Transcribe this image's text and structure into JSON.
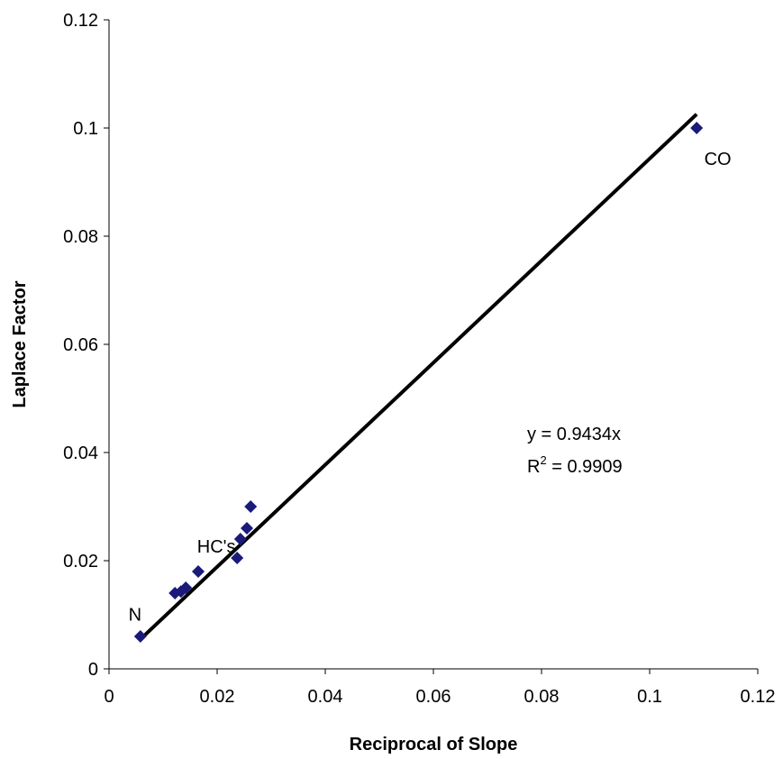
{
  "chart_data": {
    "type": "scatter",
    "xlabel": "Reciprocal of Slope",
    "ylabel": "Laplace Factor",
    "xlim": [
      0,
      0.12
    ],
    "ylim": [
      0,
      0.12
    ],
    "x_ticks": [
      "0",
      "0.02",
      "0.04",
      "0.06",
      "0.08",
      "0.1",
      "0.12"
    ],
    "y_ticks": [
      "0",
      "0.02",
      "0.04",
      "0.06",
      "0.08",
      "0.1",
      "0.12"
    ],
    "grid": false,
    "legend": "none",
    "series": [
      {
        "marker": "diamond",
        "color": "#1a1a7a",
        "points": [
          {
            "x": 0.0058,
            "y": 0.006
          },
          {
            "x": 0.0122,
            "y": 0.014
          },
          {
            "x": 0.0133,
            "y": 0.0143
          },
          {
            "x": 0.0142,
            "y": 0.015
          },
          {
            "x": 0.0165,
            "y": 0.018
          },
          {
            "x": 0.0237,
            "y": 0.0205
          },
          {
            "x": 0.0243,
            "y": 0.024
          },
          {
            "x": 0.0255,
            "y": 0.026
          },
          {
            "x": 0.0262,
            "y": 0.03
          },
          {
            "x": 0.1087,
            "y": 0.1
          }
        ]
      }
    ],
    "trendline": {
      "slope": 0.9434,
      "x_range": [
        0.0058,
        0.1087
      ],
      "color": "#000000",
      "equation": "y = 0.9434x",
      "r2_prefix": "R",
      "r2_sup": "2",
      "r2_value": " = 0.9909"
    },
    "annotations": [
      {
        "text": "CO",
        "x": 0.1101,
        "y": 0.0932
      },
      {
        "text": "HC's",
        "x": 0.0163,
        "y": 0.0215
      },
      {
        "text": "N",
        "x": 0.0036,
        "y": 0.0089
      }
    ]
  }
}
